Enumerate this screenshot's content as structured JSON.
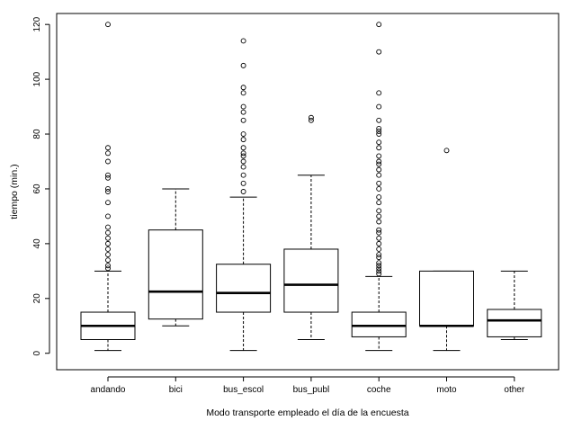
{
  "chart_data": {
    "type": "boxplot",
    "title": "",
    "xlabel": "Modo transporte empleado el día de la encuesta",
    "ylabel": "tiempo (min.)",
    "ylim": [
      -6,
      124
    ],
    "yticks": [
      0,
      20,
      40,
      60,
      80,
      100,
      120
    ],
    "categories": [
      "andando",
      "bici",
      "bus_escol",
      "bus_publ",
      "coche",
      "moto",
      "other"
    ],
    "series": [
      {
        "name": "andando",
        "whisker_low": 1,
        "q1": 5,
        "median": 10,
        "q3": 15,
        "whisker_high": 30,
        "outliers": [
          31,
          32,
          34,
          36,
          38,
          40,
          42,
          44,
          46,
          50,
          55,
          59,
          60,
          64,
          65,
          70,
          73,
          75,
          120
        ]
      },
      {
        "name": "bici",
        "whisker_low": 10,
        "q1": 12.5,
        "median": 22.5,
        "q3": 45,
        "whisker_high": 60,
        "outliers": []
      },
      {
        "name": "bus_escol",
        "whisker_low": 1,
        "q1": 15,
        "median": 22,
        "q3": 32.5,
        "whisker_high": 57,
        "outliers": [
          59,
          62,
          65,
          68,
          70,
          72,
          73,
          75,
          78,
          80,
          85,
          88,
          90,
          95,
          97,
          105,
          114
        ]
      },
      {
        "name": "bus_publ",
        "whisker_low": 5,
        "q1": 15,
        "median": 25,
        "q3": 38,
        "whisker_high": 65,
        "outliers": [
          85,
          86
        ]
      },
      {
        "name": "coche",
        "whisker_low": 1,
        "q1": 6,
        "median": 10,
        "q3": 15,
        "whisker_high": 28,
        "outliers": [
          29,
          30,
          31,
          32,
          33,
          35,
          36,
          38,
          40,
          42,
          44,
          45,
          48,
          50,
          52,
          55,
          57,
          60,
          62,
          65,
          67,
          69,
          70,
          72,
          75,
          77,
          80,
          81,
          82,
          85,
          90,
          95,
          110,
          120
        ]
      },
      {
        "name": "moto",
        "whisker_low": 1,
        "q1": 10,
        "median": 10,
        "q3": 30,
        "whisker_high": 30,
        "outliers": [
          74
        ]
      },
      {
        "name": "other",
        "whisker_low": 5,
        "q1": 6,
        "median": 12,
        "q3": 16,
        "whisker_high": 30,
        "outliers": []
      }
    ]
  }
}
